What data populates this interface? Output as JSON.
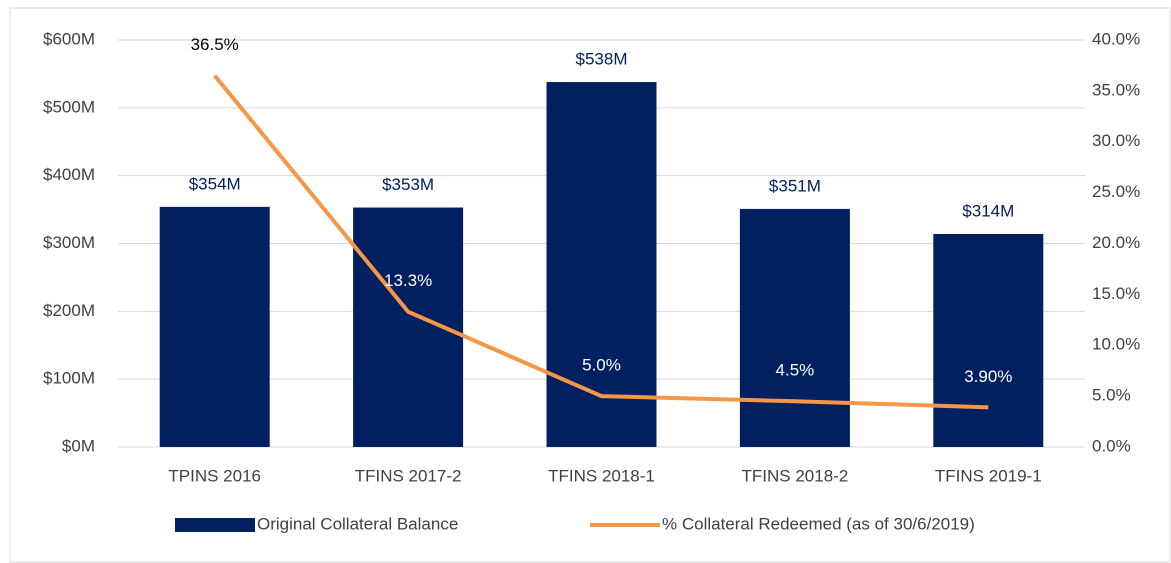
{
  "chart_data": {
    "type": "combo",
    "categories": [
      "TPINS 2016",
      "TFINS 2017-2",
      "TFINS 2018-1",
      "TFINS 2018-2",
      "TFINS 2019-1"
    ],
    "series": [
      {
        "name": "Original Collateral Balance",
        "type": "bar",
        "color": "#002060",
        "values": [
          354,
          353,
          538,
          351,
          314
        ],
        "value_labels": [
          "$354M",
          "$353M",
          "$538M",
          "$351M",
          "$314M"
        ]
      },
      {
        "name": "% Collateral Redeemed (as of 30/6/2019)",
        "type": "line",
        "axis": "y2",
        "color": "#f79646",
        "values": [
          36.5,
          13.3,
          5.0,
          4.5,
          3.9
        ],
        "value_labels": [
          "36.5%",
          "13.3%",
          "5.0%",
          "4.5%",
          "3.90%"
        ]
      }
    ],
    "ylim": [
      0,
      600
    ],
    "yticks": [
      {
        "value": 0,
        "label": "$0M"
      },
      {
        "value": 100,
        "label": "$100M"
      },
      {
        "value": 200,
        "label": "$200M"
      },
      {
        "value": 300,
        "label": "$300M"
      },
      {
        "value": 400,
        "label": "$400M"
      },
      {
        "value": 500,
        "label": "$500M"
      },
      {
        "value": 600,
        "label": "$600M"
      }
    ],
    "y2lim": [
      0,
      40
    ],
    "y2ticks": [
      {
        "value": 0,
        "label": "0.0%"
      },
      {
        "value": 5,
        "label": "5.0%"
      },
      {
        "value": 10,
        "label": "10.0%"
      },
      {
        "value": 15,
        "label": "15.0%"
      },
      {
        "value": 20,
        "label": "20.0%"
      },
      {
        "value": 25,
        "label": "25.0%"
      },
      {
        "value": 30,
        "label": "30.0%"
      },
      {
        "value": 35,
        "label": "35.0%"
      },
      {
        "value": 40,
        "label": "40.0%"
      }
    ],
    "grid": true,
    "legend": "bottom"
  }
}
